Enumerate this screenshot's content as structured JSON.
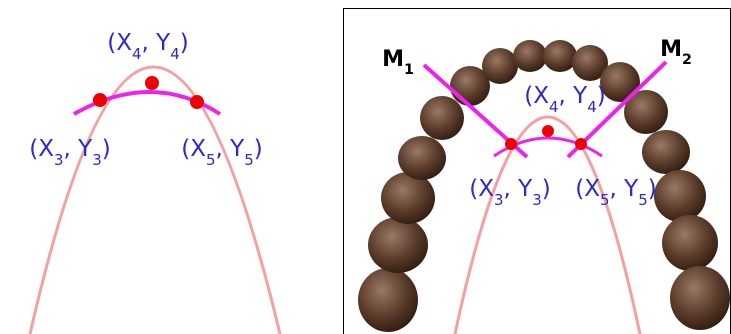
{
  "left": {
    "labels": [
      {
        "parts": [
          "(X",
          "4",
          ", Y",
          "4",
          ")"
        ]
      },
      {
        "parts": [
          "(X",
          "3",
          ", Y",
          "3",
          ")"
        ]
      },
      {
        "parts": [
          "(X",
          "5",
          ", Y",
          "5",
          ")"
        ]
      }
    ]
  },
  "right": {
    "markers": [
      {
        "parts": [
          "M",
          "1"
        ]
      },
      {
        "parts": [
          "M",
          "2"
        ]
      }
    ],
    "labels": [
      {
        "parts": [
          "(X",
          "4",
          ", Y",
          "4",
          ")"
        ]
      },
      {
        "parts": [
          "(X",
          "3",
          ", Y",
          "3",
          ")"
        ]
      },
      {
        "parts": [
          "(X",
          "5",
          ", Y",
          "5",
          ")"
        ]
      }
    ]
  }
}
